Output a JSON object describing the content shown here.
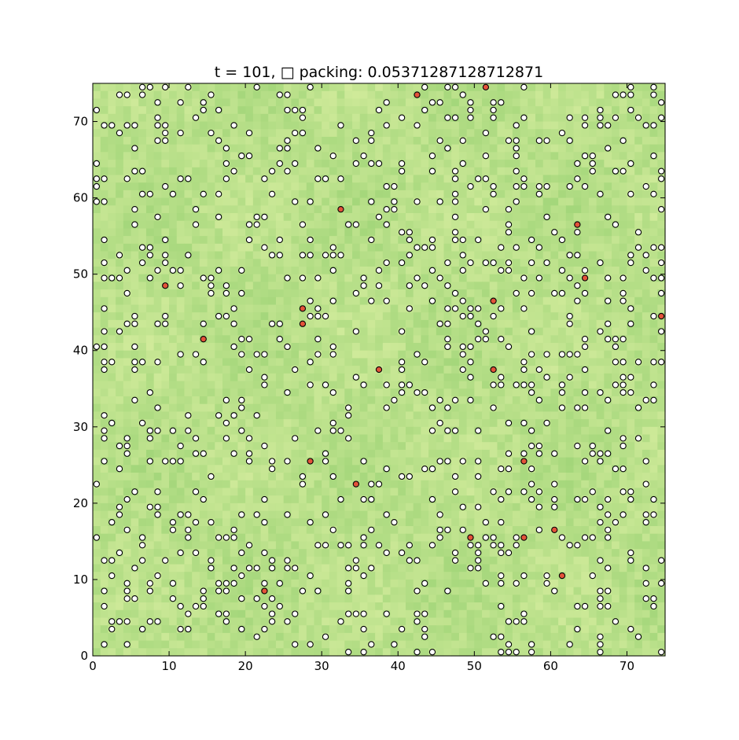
{
  "chart_data": {
    "type": "scatter",
    "title": "t = 101, □ packing:  0.05371287128712871",
    "xlabel": "",
    "ylabel": "",
    "xlim": [
      0,
      75
    ],
    "ylim": [
      0,
      75
    ],
    "x_ticks": [
      "0",
      "10",
      "20",
      "30",
      "40",
      "50",
      "60",
      "70"
    ],
    "y_ticks": [
      "0",
      "10",
      "20",
      "30",
      "40",
      "50",
      "60",
      "70"
    ],
    "grid": false,
    "background": "heatmap",
    "colors": {
      "heat_low": "#a3d67a",
      "heat_high": "#d8eea0",
      "agent_normal": "#ffffff",
      "agent_highlight": "#e3533a",
      "marker_edge": "#000000"
    },
    "highlighted_points": [
      [
        51.5,
        74.5
      ],
      [
        42.5,
        73.5
      ],
      [
        32.5,
        58.5
      ],
      [
        63.5,
        56.5
      ],
      [
        64.5,
        49.5
      ],
      [
        9.5,
        48.5
      ],
      [
        52.5,
        46.5
      ],
      [
        27.5,
        45.5
      ],
      [
        74.5,
        44.5
      ],
      [
        27.5,
        43.5
      ],
      [
        14.5,
        41.5
      ],
      [
        37.5,
        37.5
      ],
      [
        52.5,
        37.5
      ],
      [
        56.5,
        25.5
      ],
      [
        28.5,
        25.5
      ],
      [
        34.5,
        22.5
      ],
      [
        60.5,
        16.5
      ],
      [
        49.5,
        15.5
      ],
      [
        56.5,
        15.5
      ],
      [
        61.5,
        10.5
      ],
      [
        22.5,
        8.5
      ]
    ],
    "normal_point_count": 887,
    "normal_points_note": ""
  }
}
